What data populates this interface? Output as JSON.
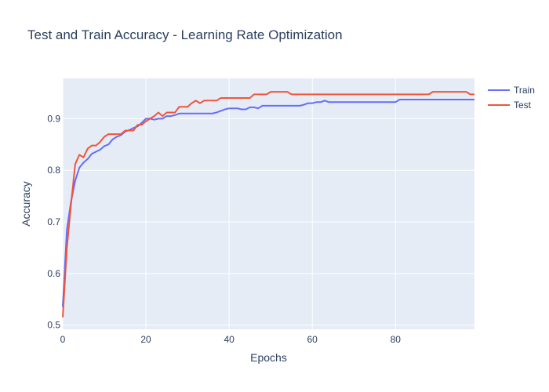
{
  "chart_data": {
    "type": "line",
    "title": "Test and Train Accuracy - Learning Rate Optimization",
    "xlabel": "Epochs",
    "ylabel": "Accuracy",
    "xlim": [
      0,
      99
    ],
    "ylim": [
      0.492,
      0.978
    ],
    "xticks": [
      0,
      20,
      40,
      60,
      80
    ],
    "yticks": [
      0.5,
      0.6,
      0.7,
      0.8,
      0.9
    ],
    "grid": true,
    "legend_position": "top-right",
    "colors": {
      "plot_bg": "#e5ecf6",
      "grid": "#ffffff",
      "text": "#2a3f5f"
    },
    "series": [
      {
        "name": "Train",
        "color": "#636efa",
        "x": [
          0,
          1,
          2,
          3,
          4,
          5,
          6,
          7,
          8,
          9,
          10,
          11,
          12,
          13,
          14,
          15,
          16,
          17,
          18,
          19,
          20,
          21,
          22,
          23,
          24,
          25,
          26,
          27,
          28,
          29,
          30,
          31,
          32,
          33,
          34,
          35,
          36,
          37,
          38,
          39,
          40,
          41,
          42,
          43,
          44,
          45,
          46,
          47,
          48,
          49,
          50,
          51,
          52,
          53,
          54,
          55,
          56,
          57,
          58,
          59,
          60,
          61,
          62,
          63,
          64,
          65,
          66,
          67,
          68,
          69,
          70,
          71,
          72,
          73,
          74,
          75,
          76,
          77,
          78,
          79,
          80,
          81,
          82,
          83,
          84,
          85,
          86,
          87,
          88,
          89,
          90,
          91,
          92,
          93,
          94,
          95,
          96,
          97,
          98,
          99
        ],
        "y": [
          0.535,
          0.685,
          0.74,
          0.78,
          0.805,
          0.815,
          0.822,
          0.832,
          0.836,
          0.84,
          0.847,
          0.85,
          0.86,
          0.865,
          0.868,
          0.875,
          0.878,
          0.882,
          0.885,
          0.892,
          0.9,
          0.9,
          0.898,
          0.9,
          0.9,
          0.905,
          0.905,
          0.907,
          0.91,
          0.91,
          0.91,
          0.91,
          0.91,
          0.91,
          0.91,
          0.91,
          0.91,
          0.912,
          0.915,
          0.918,
          0.92,
          0.92,
          0.92,
          0.918,
          0.918,
          0.922,
          0.922,
          0.92,
          0.925,
          0.925,
          0.925,
          0.925,
          0.925,
          0.925,
          0.925,
          0.925,
          0.925,
          0.925,
          0.927,
          0.93,
          0.93,
          0.932,
          0.932,
          0.935,
          0.932,
          0.932,
          0.932,
          0.932,
          0.932,
          0.932,
          0.932,
          0.932,
          0.932,
          0.932,
          0.932,
          0.932,
          0.932,
          0.932,
          0.932,
          0.932,
          0.932,
          0.937,
          0.937,
          0.937,
          0.937,
          0.937,
          0.937,
          0.937,
          0.937,
          0.937,
          0.937,
          0.937,
          0.937,
          0.937,
          0.937,
          0.937,
          0.937,
          0.937,
          0.937,
          0.937
        ]
      },
      {
        "name": "Test",
        "color": "#ef553b",
        "x": [
          0,
          1,
          2,
          3,
          4,
          5,
          6,
          7,
          8,
          9,
          10,
          11,
          12,
          13,
          14,
          15,
          16,
          17,
          18,
          19,
          20,
          21,
          22,
          23,
          24,
          25,
          26,
          27,
          28,
          29,
          30,
          31,
          32,
          33,
          34,
          35,
          36,
          37,
          38,
          39,
          40,
          41,
          42,
          43,
          44,
          45,
          46,
          47,
          48,
          49,
          50,
          51,
          52,
          53,
          54,
          55,
          56,
          57,
          58,
          59,
          60,
          61,
          62,
          63,
          64,
          65,
          66,
          67,
          68,
          69,
          70,
          71,
          72,
          73,
          74,
          75,
          76,
          77,
          78,
          79,
          80,
          81,
          82,
          83,
          84,
          85,
          86,
          87,
          88,
          89,
          90,
          91,
          92,
          93,
          94,
          95,
          96,
          97,
          98,
          99
        ],
        "y": [
          0.515,
          0.65,
          0.735,
          0.812,
          0.83,
          0.825,
          0.842,
          0.848,
          0.848,
          0.855,
          0.865,
          0.87,
          0.87,
          0.87,
          0.87,
          0.877,
          0.877,
          0.877,
          0.888,
          0.888,
          0.895,
          0.9,
          0.905,
          0.912,
          0.905,
          0.912,
          0.912,
          0.912,
          0.923,
          0.923,
          0.923,
          0.93,
          0.935,
          0.93,
          0.935,
          0.935,
          0.935,
          0.935,
          0.94,
          0.94,
          0.94,
          0.94,
          0.94,
          0.94,
          0.94,
          0.94,
          0.947,
          0.947,
          0.947,
          0.947,
          0.952,
          0.952,
          0.952,
          0.952,
          0.952,
          0.947,
          0.947,
          0.947,
          0.947,
          0.947,
          0.947,
          0.947,
          0.947,
          0.947,
          0.947,
          0.947,
          0.947,
          0.947,
          0.947,
          0.947,
          0.947,
          0.947,
          0.947,
          0.947,
          0.947,
          0.947,
          0.947,
          0.947,
          0.947,
          0.947,
          0.947,
          0.947,
          0.947,
          0.947,
          0.947,
          0.947,
          0.947,
          0.947,
          0.947,
          0.952,
          0.952,
          0.952,
          0.952,
          0.952,
          0.952,
          0.952,
          0.952,
          0.952,
          0.947,
          0.947
        ]
      }
    ]
  }
}
